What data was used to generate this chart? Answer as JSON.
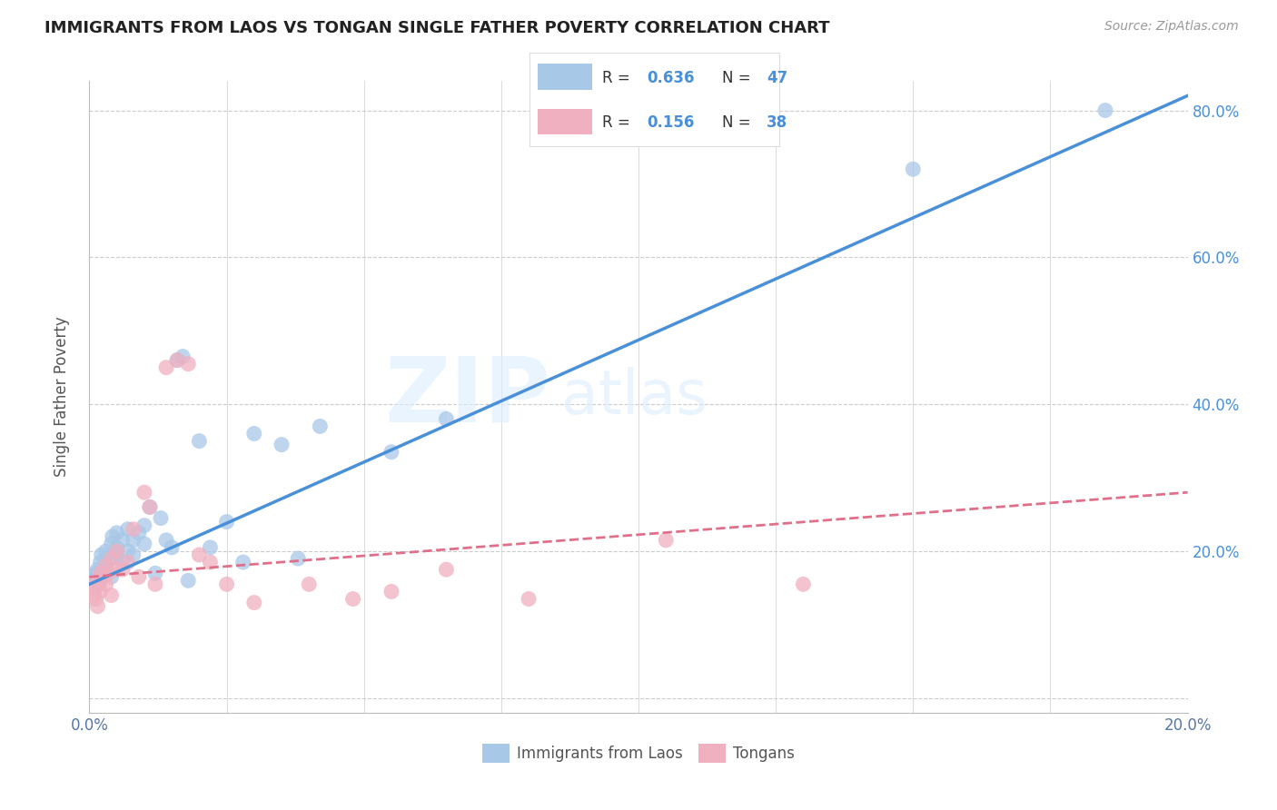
{
  "title": "IMMIGRANTS FROM LAOS VS TONGAN SINGLE FATHER POVERTY CORRELATION CHART",
  "source": "Source: ZipAtlas.com",
  "ylabel": "Single Father Poverty",
  "legend_labels": [
    "Immigrants from Laos",
    "Tongans"
  ],
  "blue_color": "#a8c8e8",
  "pink_color": "#f0b0c0",
  "blue_line_color": "#4a90d9",
  "pink_line_color": "#e0708a",
  "xlim": [
    0.0,
    0.2
  ],
  "ylim": [
    -0.02,
    0.84
  ],
  "x_ticks": [
    0.0,
    0.025,
    0.05,
    0.075,
    0.1,
    0.125,
    0.15,
    0.175,
    0.2
  ],
  "x_tick_labels_show": [
    "0.0%",
    "",
    "",
    "",
    "",
    "",
    "",
    "",
    "20.0%"
  ],
  "y_ticks": [
    0.0,
    0.2,
    0.4,
    0.6,
    0.8
  ],
  "y_tick_labels_right": [
    "",
    "20.0%",
    "40.0%",
    "60.0%",
    "80.0%"
  ],
  "watermark_zip": "ZIP",
  "watermark_atlas": "atlas",
  "blue_scatter_x": [
    0.0008,
    0.001,
    0.0012,
    0.0015,
    0.0018,
    0.002,
    0.002,
    0.0022,
    0.003,
    0.003,
    0.003,
    0.0035,
    0.004,
    0.004,
    0.0042,
    0.005,
    0.005,
    0.005,
    0.006,
    0.006,
    0.007,
    0.007,
    0.008,
    0.008,
    0.009,
    0.01,
    0.01,
    0.011,
    0.012,
    0.013,
    0.014,
    0.015,
    0.016,
    0.017,
    0.018,
    0.02,
    0.022,
    0.025,
    0.028,
    0.03,
    0.035,
    0.038,
    0.042,
    0.055,
    0.065,
    0.15,
    0.185
  ],
  "blue_scatter_y": [
    0.165,
    0.16,
    0.17,
    0.175,
    0.155,
    0.168,
    0.185,
    0.195,
    0.175,
    0.18,
    0.2,
    0.19,
    0.21,
    0.165,
    0.22,
    0.195,
    0.205,
    0.225,
    0.185,
    0.215,
    0.2,
    0.23,
    0.195,
    0.215,
    0.225,
    0.21,
    0.235,
    0.26,
    0.17,
    0.245,
    0.215,
    0.205,
    0.46,
    0.465,
    0.16,
    0.35,
    0.205,
    0.24,
    0.185,
    0.36,
    0.345,
    0.19,
    0.37,
    0.335,
    0.38,
    0.72,
    0.8
  ],
  "pink_scatter_x": [
    0.0005,
    0.0008,
    0.001,
    0.0012,
    0.0015,
    0.0018,
    0.002,
    0.002,
    0.0025,
    0.003,
    0.003,
    0.0035,
    0.004,
    0.004,
    0.005,
    0.005,
    0.006,
    0.007,
    0.008,
    0.009,
    0.01,
    0.011,
    0.012,
    0.014,
    0.016,
    0.018,
    0.02,
    0.022,
    0.025,
    0.03,
    0.04,
    0.048,
    0.055,
    0.065,
    0.08,
    0.105,
    0.13
  ],
  "pink_scatter_y": [
    0.155,
    0.14,
    0.15,
    0.135,
    0.125,
    0.16,
    0.145,
    0.17,
    0.165,
    0.155,
    0.18,
    0.17,
    0.19,
    0.14,
    0.175,
    0.2,
    0.175,
    0.185,
    0.23,
    0.165,
    0.28,
    0.26,
    0.155,
    0.45,
    0.46,
    0.455,
    0.195,
    0.185,
    0.155,
    0.13,
    0.155,
    0.135,
    0.145,
    0.175,
    0.135,
    0.215,
    0.155
  ],
  "blue_line_x": [
    0.0,
    0.2
  ],
  "blue_line_y": [
    0.155,
    0.82
  ],
  "pink_line_x": [
    0.0,
    0.2
  ],
  "pink_line_y": [
    0.165,
    0.28
  ]
}
